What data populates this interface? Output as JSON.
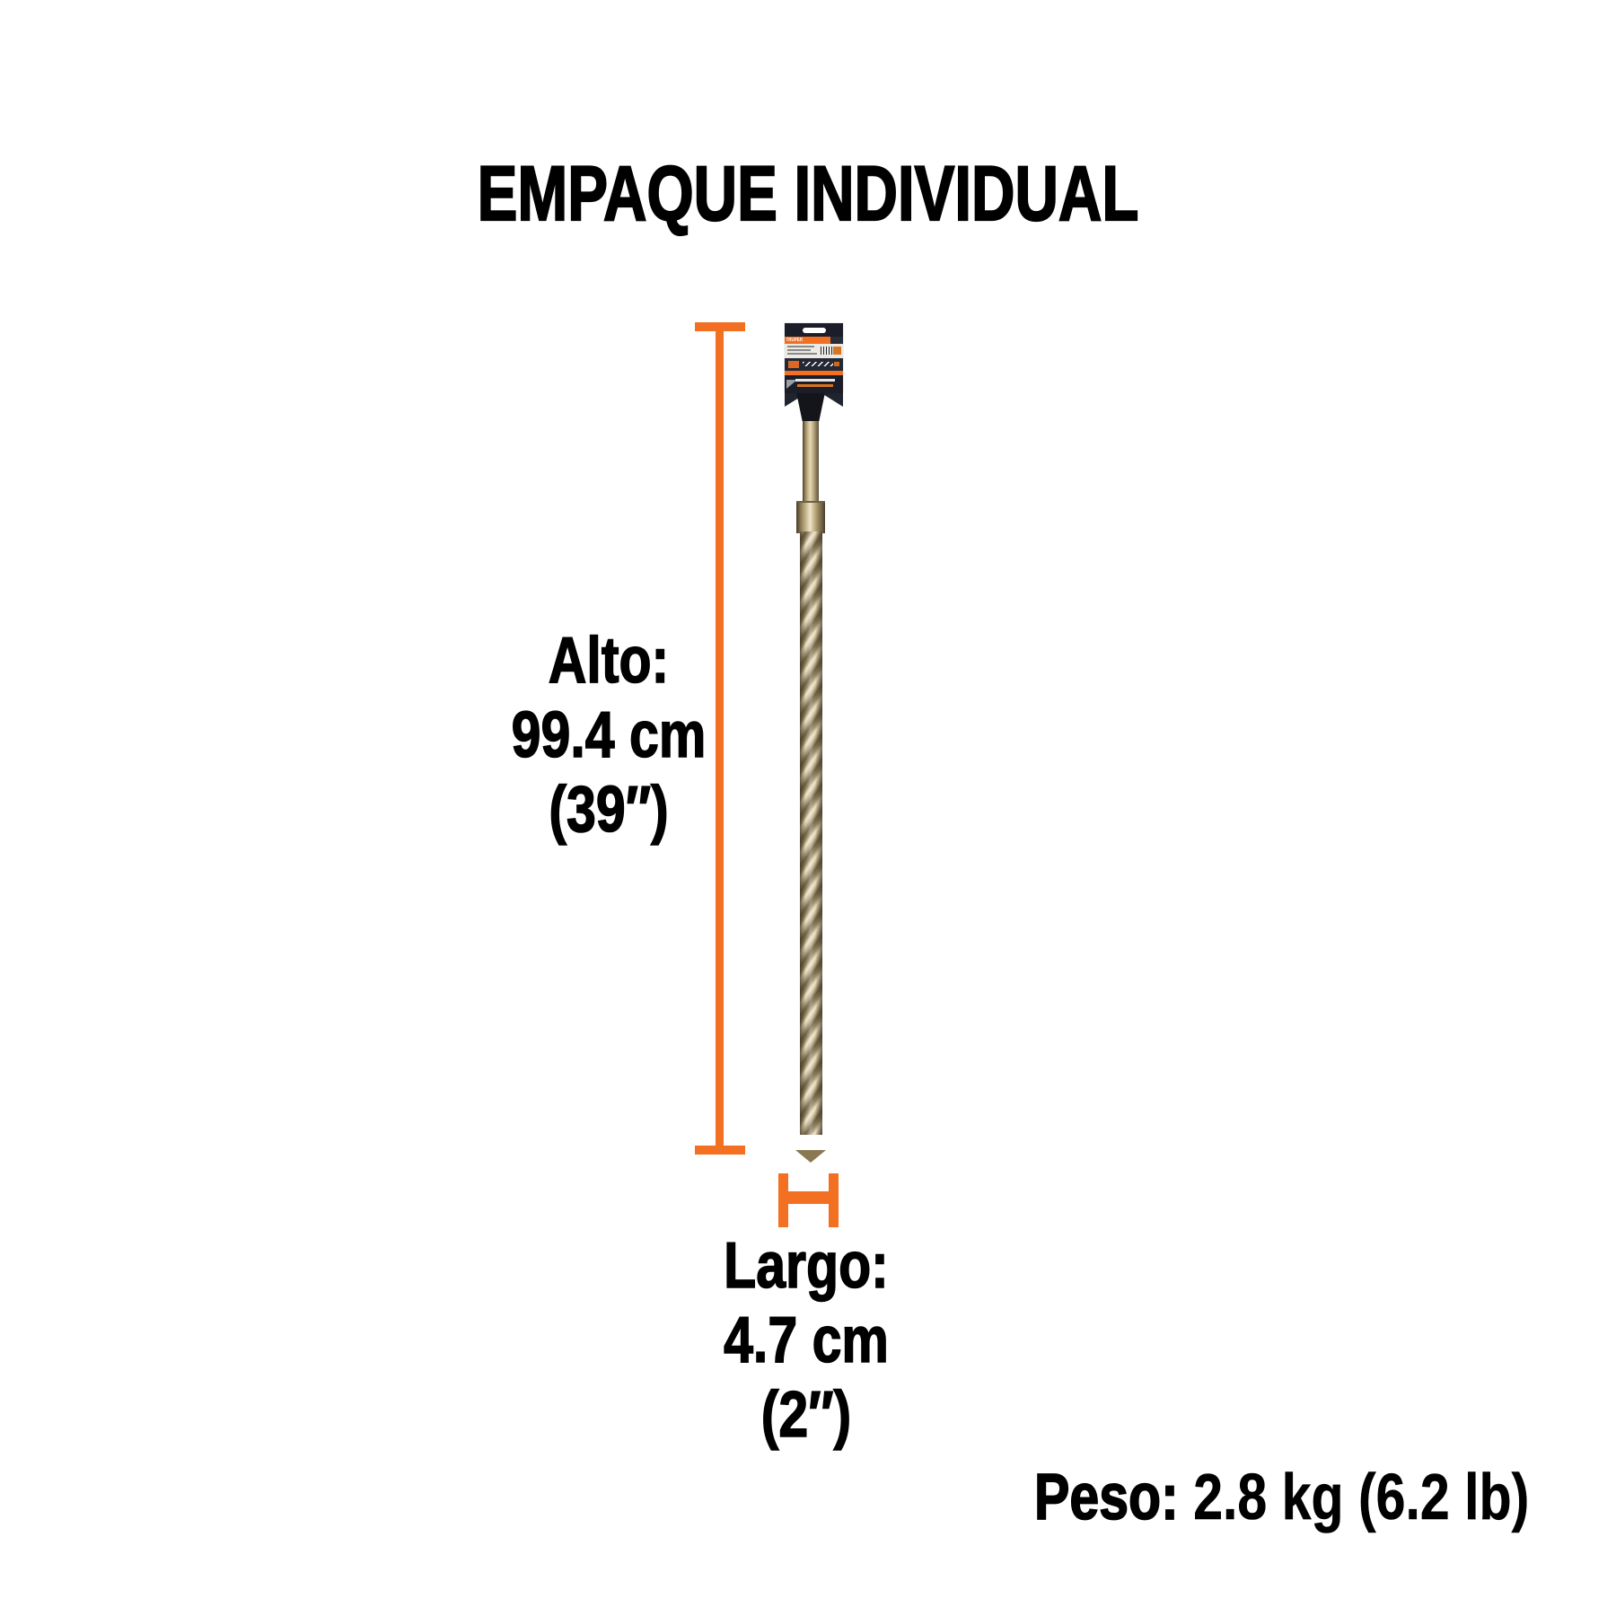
{
  "title": "EMPAQUE INDIVIDUAL",
  "dimensions": {
    "alto": {
      "label": "Alto:",
      "metric": "99.4 cm",
      "imperial": "(39″)"
    },
    "largo": {
      "label": "Largo:",
      "metric": "4.7 cm",
      "imperial": "(2″)"
    },
    "peso": {
      "label": "Peso:",
      "value": " 2.8 kg (6.2 lb)"
    }
  },
  "package": {
    "brand": "TRUPER"
  },
  "colors": {
    "accent": "#F36F21",
    "text": "#000000",
    "card": "#1B1E28",
    "bit_light": "#EFE6CA",
    "bit_mid": "#A8966A",
    "bit_dark": "#4A3F2C"
  }
}
